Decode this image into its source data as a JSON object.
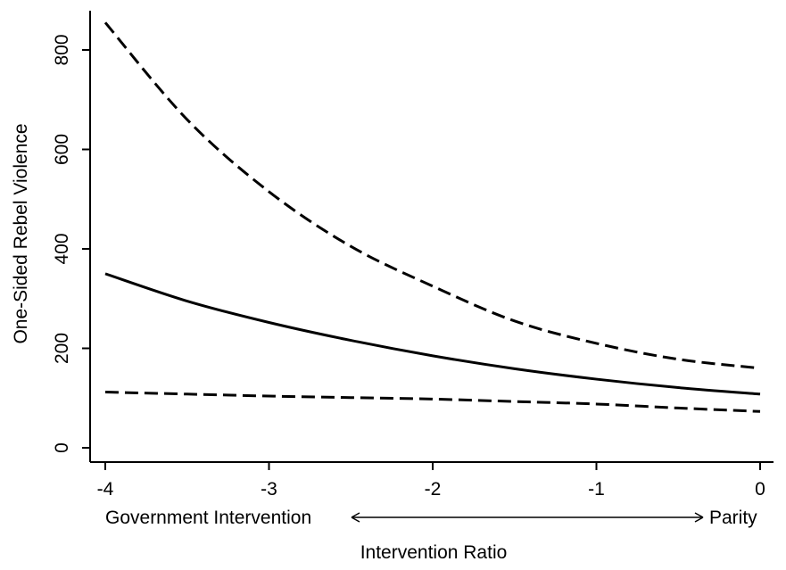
{
  "chart_data": {
    "type": "line",
    "title": "",
    "xlabel": "Intervention Ratio",
    "ylabel": "One-Sided Rebel Violence",
    "xlim": [
      -4,
      0
    ],
    "ylim": [
      0,
      860
    ],
    "xticks": [
      -4,
      -3,
      -2,
      -1,
      0
    ],
    "xtick_labels": [
      "-4",
      "-3",
      "-2",
      "-1",
      "0"
    ],
    "yticks": [
      0,
      200,
      400,
      600,
      800
    ],
    "ytick_labels": [
      "0",
      "200",
      "400",
      "600",
      "800"
    ],
    "grid": false,
    "legend": "none",
    "annotations": {
      "left": "Government Intervention",
      "right": "Parity"
    },
    "x": [
      -4,
      -3.5,
      -3,
      -2.5,
      -2,
      -1.5,
      -1,
      -0.5,
      0
    ],
    "series": [
      {
        "line_style": "solid",
        "values": [
          350,
          295,
          252,
          216,
          185,
          159,
          138,
          121,
          108
        ]
      },
      {
        "line_style": "dashed",
        "values": [
          855,
          660,
          515,
          405,
          325,
          255,
          210,
          178,
          160
        ]
      },
      {
        "line_style": "dashed",
        "values": [
          112,
          108,
          104,
          101,
          98,
          93,
          88,
          80,
          73
        ]
      }
    ]
  }
}
